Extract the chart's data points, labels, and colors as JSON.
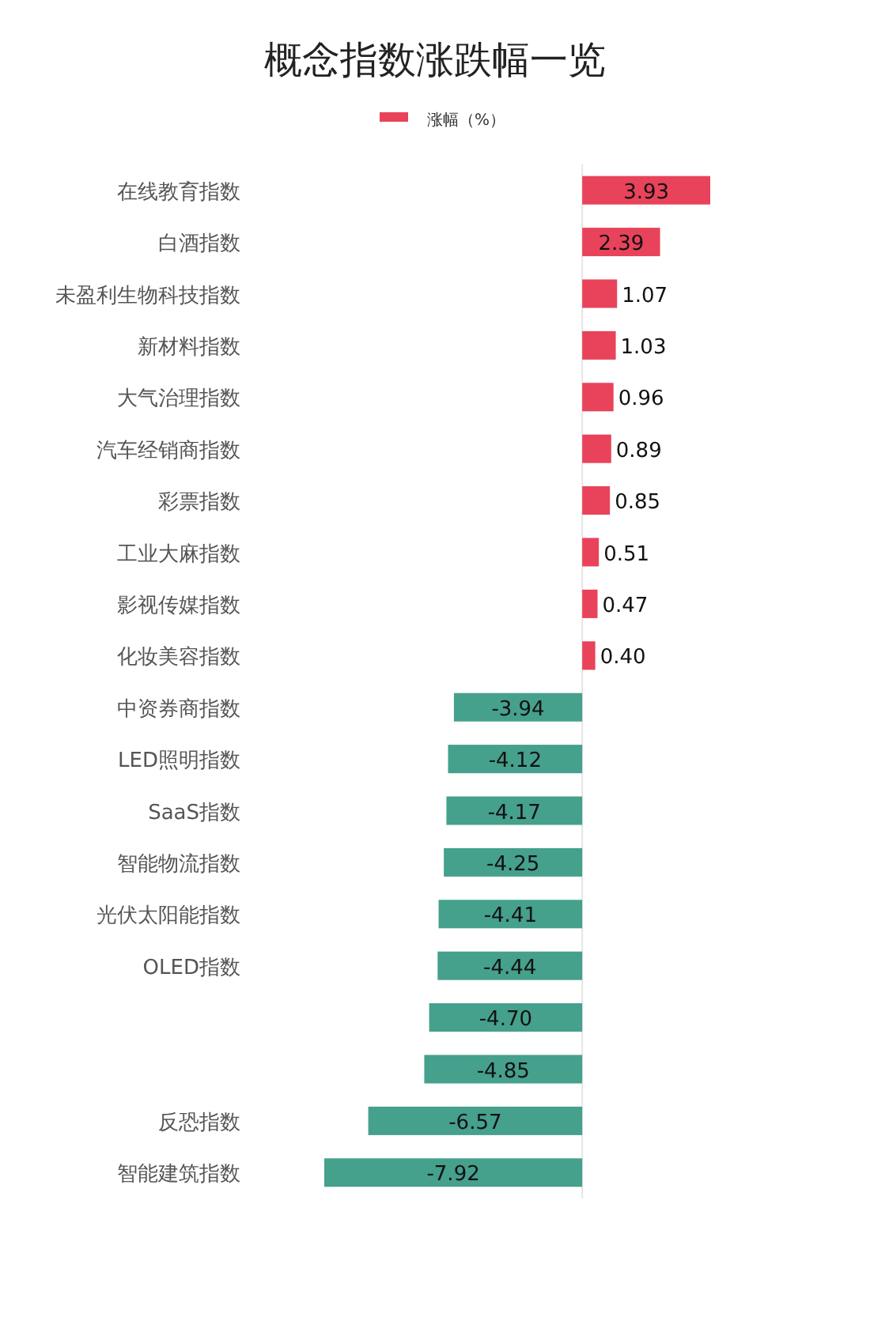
{
  "chart_data": {
    "type": "bar",
    "orientation": "horizontal",
    "title": "概念指数涨跌幅一览",
    "legend": "top",
    "categories": [
      "在线教育指数",
      "白酒指数",
      "未盈利生物科技指数",
      "新材料指数",
      "大气治理指数",
      "汽车经销商指数",
      "彩票指数",
      "工业大麻指数",
      "影视传媒指数",
      "化妆美容指数",
      "中资券商指数",
      "LED照明指数",
      "SaaS指数",
      "智能物流指数",
      "光伏太阳能指数",
      "OLED指数",
      null,
      null,
      "反恐指数",
      "智能建筑指数"
    ],
    "series": [
      {
        "name": "涨幅（%）",
        "color": "#e8435a",
        "colors": [
          "#e8435a",
          "#e8435a",
          "#e8435a",
          "#e8435a",
          "#e8435a",
          "#e8435a",
          "#e8435a",
          "#e8435a",
          "#e8435a",
          "#e8435a",
          "#45a08c",
          "#45a08c",
          "#45a08c",
          "#45a08c",
          "#45a08c",
          "#45a08c",
          "#45a08c",
          "#45a08c",
          "#45a08c",
          "#45a08c"
        ],
        "value_labels": [
          "3.93",
          "2.39",
          "1.07",
          "1.03",
          "0.96",
          "0.89",
          "0.85",
          "0.51",
          "0.47",
          "0.40",
          "-3.94",
          "-4.12",
          "-4.17",
          "-4.25",
          "-4.41",
          "-4.44",
          "-4.70",
          "-4.85",
          "-6.57",
          "-7.92"
        ],
        "values": [
          3.93,
          2.39,
          1.07,
          1.03,
          0.96,
          0.89,
          0.85,
          0.51,
          0.47,
          0.4,
          -3.94,
          -4.12,
          -4.17,
          -4.25,
          -4.41,
          -4.44,
          -4.7,
          -4.85,
          -6.57,
          -7.92
        ]
      }
    ]
  }
}
